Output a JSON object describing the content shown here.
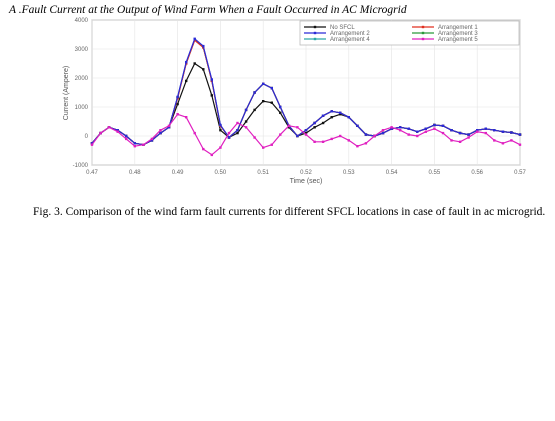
{
  "heading": "A .Fault Current at the Output of Wind Farm When a Fault Occurred in AC Microgrid",
  "caption": "Fig. 3. Comparison of the wind farm fault currents for different SFCL    locations in case of fault in ac microgrid.",
  "chart_data": {
    "type": "line",
    "xlabel": "Time (sec)",
    "ylabel": "Current (Ampere)",
    "xlim": [
      0.47,
      0.57
    ],
    "ylim": [
      -1000,
      4000
    ],
    "x_ticks": [
      "0.47",
      "0.48",
      "0.49",
      "0.50",
      "0.51",
      "0.52",
      "0.53",
      "0.54",
      "0.55",
      "0.56",
      "0.57"
    ],
    "y_ticks": [
      "-1000",
      "0",
      "1000",
      "2000",
      "3000",
      "4000"
    ],
    "grid": true,
    "legend_position": "top-right",
    "x": [
      0.47,
      0.472,
      0.474,
      0.476,
      0.478,
      0.48,
      0.482,
      0.484,
      0.486,
      0.488,
      0.49,
      0.492,
      0.494,
      0.496,
      0.498,
      0.5,
      0.502,
      0.504,
      0.506,
      0.508,
      0.51,
      0.512,
      0.514,
      0.516,
      0.518,
      0.52,
      0.522,
      0.524,
      0.526,
      0.528,
      0.53,
      0.532,
      0.534,
      0.536,
      0.538,
      0.54,
      0.542,
      0.544,
      0.546,
      0.548,
      0.55,
      0.552,
      0.554,
      0.556,
      0.558,
      0.56,
      0.562,
      0.564,
      0.566,
      0.568,
      0.57
    ],
    "series": [
      {
        "name": "No SFCL",
        "color": "#111111",
        "values": [
          -250,
          100,
          300,
          200,
          0,
          -250,
          -300,
          -150,
          100,
          300,
          1100,
          1900,
          2500,
          2300,
          1400,
          200,
          -50,
          100,
          500,
          900,
          1200,
          1150,
          800,
          300,
          0,
          100,
          300,
          450,
          650,
          750,
          650,
          350,
          50,
          0,
          100,
          250,
          300,
          250,
          150,
          250,
          380,
          350,
          200,
          100,
          50,
          200,
          250,
          200,
          150,
          120,
          50
        ]
      },
      {
        "name": "Arrangement 1",
        "color": "#e03020",
        "values": [
          -250,
          100,
          300,
          200,
          0,
          -250,
          -300,
          -150,
          100,
          300,
          1300,
          2500,
          3300,
          3050,
          1900,
          350,
          -50,
          200,
          900,
          1500,
          1800,
          1650,
          1000,
          350,
          0,
          200,
          450,
          700,
          850,
          800,
          650,
          350,
          50,
          0,
          100,
          250,
          300,
          250,
          150,
          250,
          380,
          350,
          200,
          100,
          50,
          200,
          250,
          200,
          150,
          120,
          50
        ]
      },
      {
        "name": "Arrangement 2",
        "color": "#2a2ad8",
        "values": [
          -250,
          100,
          300,
          200,
          0,
          -250,
          -300,
          -150,
          100,
          300,
          1350,
          2550,
          3350,
          3100,
          1950,
          380,
          -50,
          200,
          900,
          1500,
          1800,
          1650,
          1000,
          350,
          0,
          200,
          450,
          700,
          850,
          800,
          650,
          350,
          50,
          0,
          100,
          250,
          300,
          250,
          150,
          250,
          380,
          350,
          200,
          100,
          50,
          200,
          250,
          200,
          150,
          120,
          50
        ]
      },
      {
        "name": "Arrangement 3",
        "color": "#2a9a3a",
        "values": [
          -250,
          100,
          300,
          200,
          0,
          -250,
          -300,
          -150,
          100,
          300,
          1330,
          2520,
          3320,
          3070,
          1920,
          360,
          -50,
          200,
          900,
          1500,
          1800,
          1650,
          1000,
          350,
          0,
          200,
          450,
          700,
          850,
          800,
          650,
          350,
          50,
          0,
          100,
          250,
          300,
          250,
          150,
          250,
          380,
          350,
          200,
          100,
          50,
          200,
          250,
          200,
          150,
          120,
          50
        ]
      },
      {
        "name": "Arrangement 4",
        "color": "#2aa8a8",
        "values": [
          -250,
          100,
          300,
          200,
          0,
          -250,
          -300,
          -150,
          100,
          300,
          1320,
          2510,
          3310,
          3060,
          1910,
          355,
          -50,
          200,
          900,
          1500,
          1800,
          1650,
          1000,
          350,
          0,
          200,
          450,
          700,
          850,
          800,
          650,
          350,
          50,
          0,
          100,
          250,
          300,
          250,
          150,
          250,
          380,
          350,
          200,
          100,
          50,
          200,
          250,
          200,
          150,
          120,
          50
        ]
      },
      {
        "name": "Arrangement 5",
        "color": "#e020c0",
        "values": [
          -300,
          100,
          300,
          150,
          -100,
          -350,
          -300,
          -100,
          200,
          350,
          750,
          650,
          100,
          -450,
          -650,
          -400,
          100,
          450,
          300,
          -50,
          -400,
          -300,
          50,
          350,
          300,
          50,
          -200,
          -200,
          -100,
          0,
          -150,
          -350,
          -250,
          0,
          200,
          300,
          200,
          50,
          0,
          150,
          250,
          100,
          -150,
          -200,
          -50,
          150,
          100,
          -150,
          -250,
          -150,
          -300
        ]
      }
    ]
  }
}
